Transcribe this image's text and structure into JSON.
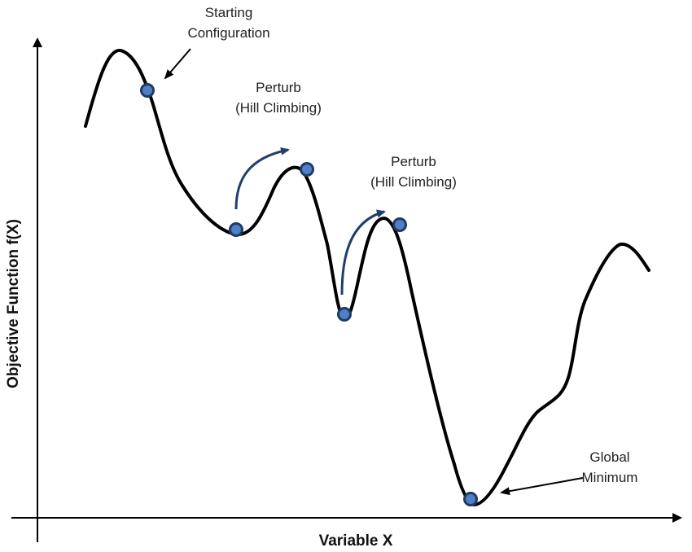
{
  "axes": {
    "x_label": "Variable X",
    "y_label": "Objective Function f(X)"
  },
  "annotations": {
    "start": {
      "line1": "Starting",
      "line2": "Configuration"
    },
    "perturb_1": {
      "line1": "Perturb",
      "line2": "(Hill Climbing)"
    },
    "perturb_2": {
      "line1": "Perturb",
      "line2": "(Hill Climbing)"
    },
    "global_min": {
      "line1": "Global",
      "line2": "Minimum"
    }
  },
  "colors": {
    "curve": "#000000",
    "point_fill": "#4f7fc6",
    "point_stroke": "#1f3a63",
    "perturb_arrow": "#1f3f6b",
    "axis": "#000000"
  }
}
